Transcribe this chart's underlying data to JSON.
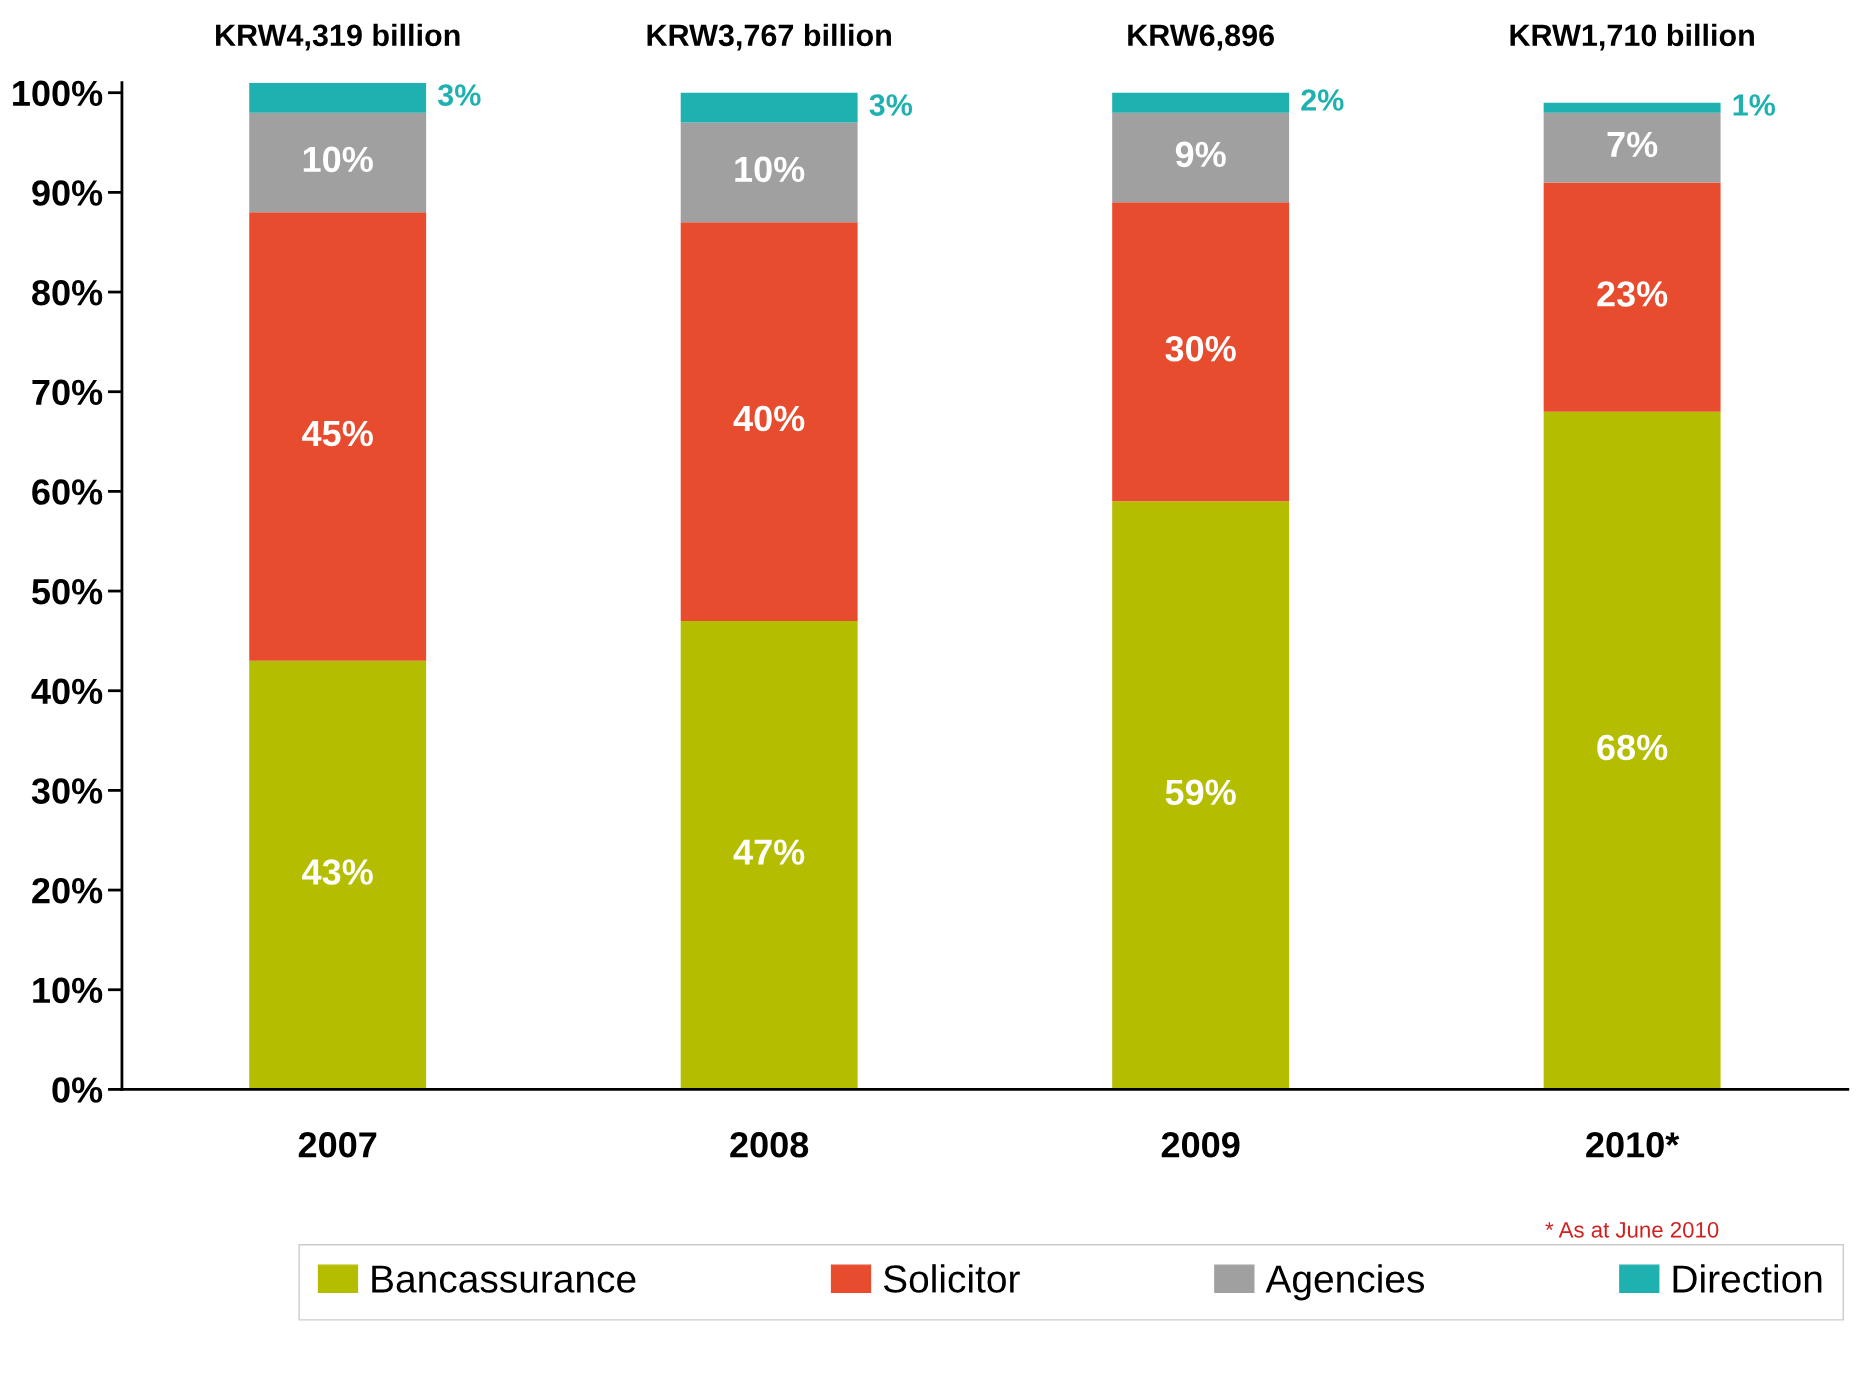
{
  "chart_data": {
    "type": "bar",
    "stacked": true,
    "categories": [
      "2007",
      "2008",
      "2009",
      "2010*"
    ],
    "series": [
      {
        "name": "Bancassurance",
        "color": "#b5bd00",
        "values": [
          43,
          47,
          59,
          68
        ]
      },
      {
        "name": "Solicitor",
        "color": "#e84c2e",
        "values": [
          45,
          40,
          30,
          23
        ]
      },
      {
        "name": "Agencies",
        "color": "#a0a0a0",
        "values": [
          10,
          10,
          9,
          7
        ]
      },
      {
        "name": "Direction",
        "color": "#1fb0b0",
        "values": [
          3,
          3,
          2,
          1
        ]
      }
    ],
    "ylim": [
      0,
      101
    ],
    "yticks": [
      {
        "value": 0,
        "label": "0%"
      },
      {
        "value": 10,
        "label": "10%"
      },
      {
        "value": 20,
        "label": "20%"
      },
      {
        "value": 30,
        "label": "30%"
      },
      {
        "value": 40,
        "label": "40%"
      },
      {
        "value": 50,
        "label": "50%"
      },
      {
        "value": 60,
        "label": "60%"
      },
      {
        "value": 70,
        "label": "70%"
      },
      {
        "value": 80,
        "label": "80%"
      },
      {
        "value": 90,
        "label": "90%"
      },
      {
        "value": 100,
        "label": "100%"
      }
    ],
    "value_labels": [
      [
        "43%",
        "47%",
        "59%",
        "68%"
      ],
      [
        "45%",
        "40%",
        "30%",
        "23%"
      ],
      [
        "10%",
        "10%",
        "9%",
        "7%"
      ],
      [
        "3%",
        "3%",
        "2%",
        "1%"
      ]
    ],
    "annotations": [
      "KRW4,319 billion",
      "KRW3,767 billion",
      "KRW6,896",
      "KRW1,710 billion",
      "* As at June 2010"
    ],
    "grid": false,
    "legend": "bottom"
  }
}
